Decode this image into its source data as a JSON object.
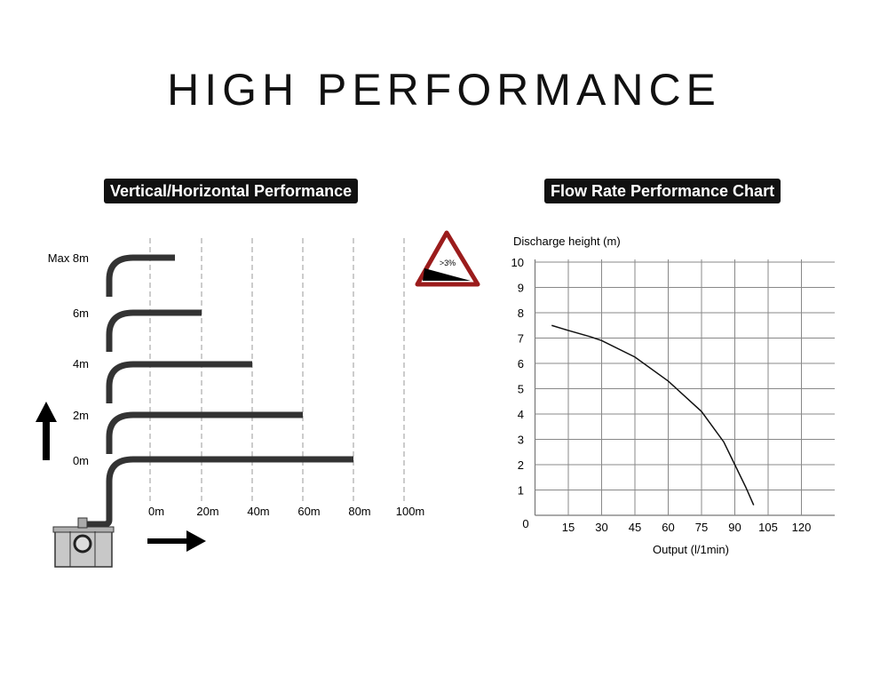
{
  "header": {
    "title": "HIGH PERFORMANCE"
  },
  "left_panel": {
    "badge": "Vertical/Horizontal Performance",
    "height_labels": [
      "Max 8m",
      "6m",
      "4m",
      "2m",
      "0m"
    ],
    "distance_labels": [
      "0m",
      "20m",
      "40m",
      "60m",
      "80m",
      "100m"
    ],
    "slope_sign": ">3%",
    "colors": {
      "pipe": "#333333",
      "sign_border": "#9b1c1c"
    }
  },
  "right_panel": {
    "badge": "Flow Rate Performance Chart"
  },
  "chart_data": {
    "type": "line",
    "title": "",
    "xlabel": "Output (l/1min)",
    "ylabel": "Discharge height (m)",
    "xlim": [
      0,
      135
    ],
    "ylim": [
      0,
      10
    ],
    "x_ticks": [
      15,
      30,
      45,
      60,
      75,
      90,
      105,
      120
    ],
    "y_ticks": [
      1,
      2,
      3,
      4,
      5,
      6,
      7,
      8,
      9,
      10
    ],
    "origin_label": "0",
    "grid": true,
    "series": [
      {
        "x": [
          7.5,
          15,
          25,
          30,
          45,
          60,
          75,
          85,
          90,
          95,
          98.5
        ],
        "y": [
          7.5,
          7.3,
          7.05,
          6.9,
          6.25,
          5.3,
          4.1,
          2.9,
          2.0,
          1.1,
          0.4
        ]
      }
    ]
  }
}
